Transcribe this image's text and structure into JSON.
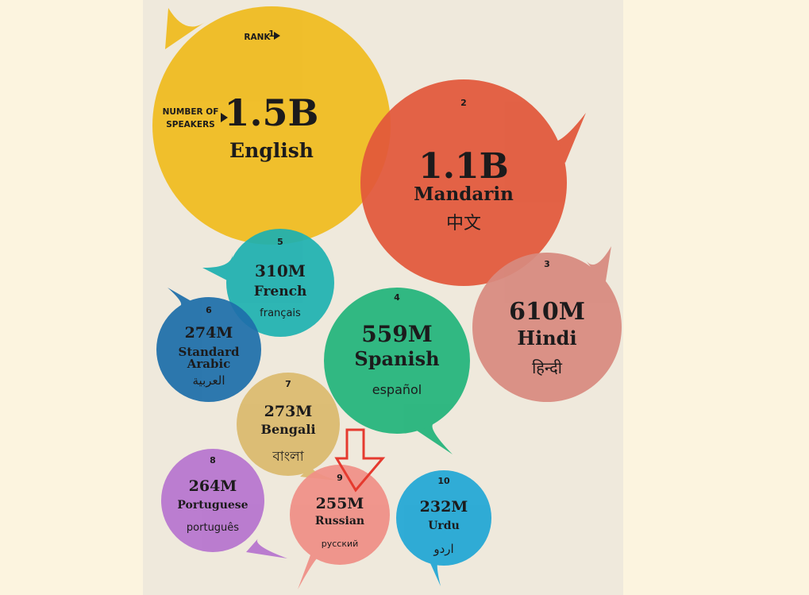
{
  "legend": {
    "rank_label": "RANK",
    "speakers_label_line1": "NUMBER OF",
    "speakers_label_line2": "SPEAKERS"
  },
  "chart_data": {
    "type": "bubble",
    "unit": "speakers",
    "items": [
      {
        "rank": "1",
        "value_label": "1.5B",
        "value": 1500000000,
        "language": "English",
        "native": "",
        "color": "#f0bb1e"
      },
      {
        "rank": "2",
        "value_label": "1.1B",
        "value": 1100000000,
        "language": "Mandarin",
        "native": "中文",
        "color": "#e2573a"
      },
      {
        "rank": "3",
        "value_label": "610M",
        "value": 610000000,
        "language": "Hindi",
        "native": "हिन्दी",
        "color": "#d88a7f"
      },
      {
        "rank": "4",
        "value_label": "559M",
        "value": 559000000,
        "language": "Spanish",
        "native": "español",
        "color": "#22b47b"
      },
      {
        "rank": "5",
        "value_label": "310M",
        "value": 310000000,
        "language": "French",
        "native": "français",
        "color": "#1fb1b0"
      },
      {
        "rank": "6",
        "value_label": "274M",
        "value": 274000000,
        "language": "Standard Arabic",
        "native": "العربية",
        "color": "#1e6faa"
      },
      {
        "rank": "7",
        "value_label": "273M",
        "value": 273000000,
        "language": "Bengali",
        "native": "বাংলা",
        "color": "#dbba6e"
      },
      {
        "rank": "8",
        "value_label": "264M",
        "value": 264000000,
        "language": "Portuguese",
        "native": "português",
        "color": "#b774cf"
      },
      {
        "rank": "9",
        "value_label": "255M",
        "value": 255000000,
        "language": "Russian",
        "native": "русский",
        "color": "#f08f86"
      },
      {
        "rank": "10",
        "value_label": "232M",
        "value": 232000000,
        "language": "Urdu",
        "native": "اردو",
        "color": "#21a7d5"
      }
    ]
  },
  "annotation": {
    "type": "arrow-down",
    "color": "#e53a2f",
    "points_to_rank": "9"
  }
}
